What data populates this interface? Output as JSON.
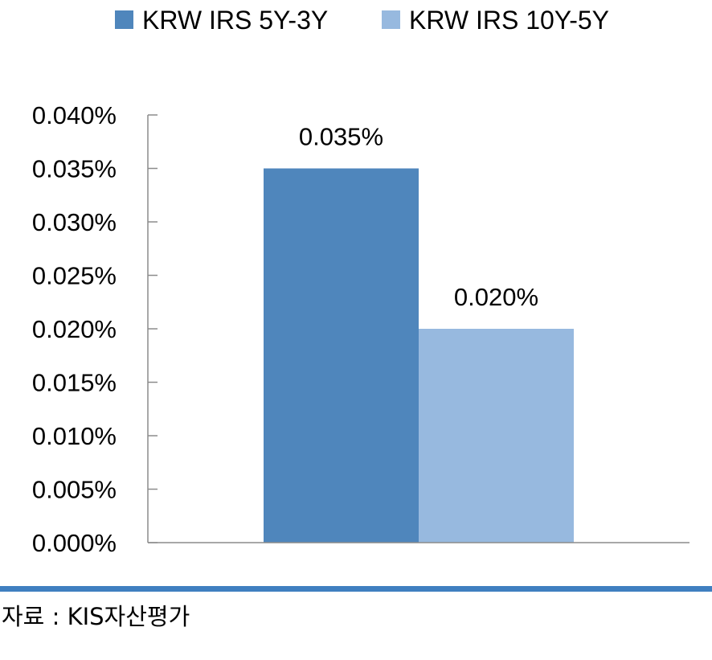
{
  "chart_data": {
    "type": "bar",
    "categories": [
      ""
    ],
    "series": [
      {
        "name": "KRW IRS 5Y-3Y",
        "values": [
          0.035
        ],
        "color": "#4f86bc",
        "label": "0.035%"
      },
      {
        "name": "KRW IRS 10Y-5Y",
        "values": [
          0.02
        ],
        "color": "#97b9df",
        "label": "0.020%"
      }
    ],
    "ylim": [
      0,
      0.04
    ],
    "ytick_step": 0.005,
    "ytick_labels": [
      "0.000%",
      "0.005%",
      "0.010%",
      "0.015%",
      "0.020%",
      "0.025%",
      "0.030%",
      "0.035%",
      "0.040%"
    ],
    "xlabel": "",
    "ylabel": "",
    "grid": false,
    "legend_position": "top-center"
  },
  "source": {
    "text": "자료 : KIS자산평가",
    "rule_color": "#3f7fc0"
  }
}
